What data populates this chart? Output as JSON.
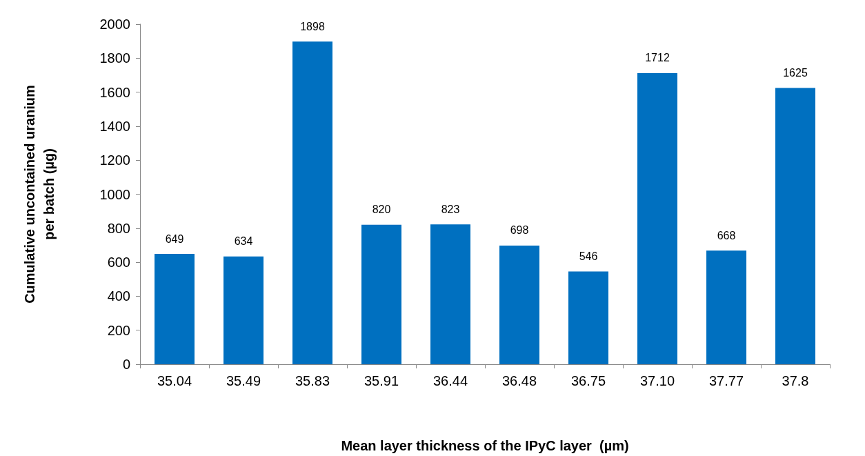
{
  "chart_data": {
    "type": "bar",
    "xlabel": "Mean layer thickness of the IPyC layer  (µm)",
    "ylabel": "Cumulative uncontained uranium\nper batch (µg)",
    "categories": [
      "35.04",
      "35.49",
      "35.83",
      "35.91",
      "36.44",
      "36.48",
      "36.75",
      "37.10",
      "37.77",
      "37.8"
    ],
    "values": [
      649,
      634,
      1898,
      820,
      823,
      698,
      546,
      1712,
      668,
      1625
    ],
    "color": "#0070c0",
    "ylim": [
      0,
      2000
    ],
    "yticks": [
      0,
      200,
      400,
      600,
      800,
      1000,
      1200,
      1400,
      1600,
      1800,
      2000
    ],
    "grid": false,
    "data_labels": true
  }
}
